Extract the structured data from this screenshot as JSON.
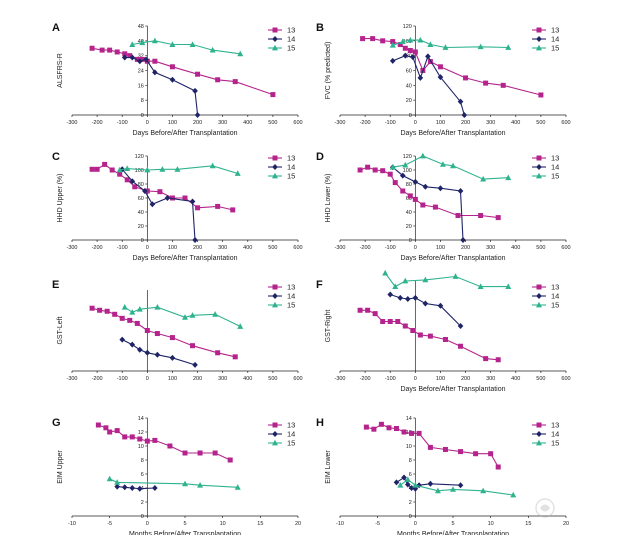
{
  "chart_data": [
    {
      "panel": "A",
      "type": "line",
      "xlabel": "Days Before/After Transplantation",
      "ylabel": "ALSFRS-R",
      "xlim": [
        -300,
        600
      ],
      "ylim": [
        0,
        48
      ],
      "xticks": [
        "-300",
        "-200",
        "-100",
        "0",
        "100",
        "200",
        "300",
        "400",
        "500",
        "600"
      ],
      "yticks": [
        "0",
        "8",
        "16",
        "24",
        "32",
        "40",
        "48"
      ],
      "series": [
        {
          "name": "13",
          "color": "#b5248c",
          "marker": "square",
          "x": [
            -220,
            -180,
            -150,
            -120,
            -90,
            -70,
            -40,
            -20,
            0,
            30,
            100,
            200,
            280,
            350,
            500
          ],
          "y": [
            36,
            35,
            35,
            34,
            33,
            32,
            30,
            30,
            29,
            29,
            26,
            22,
            19,
            18,
            11
          ]
        },
        {
          "name": "14",
          "color": "#1e2466",
          "marker": "diamond",
          "x": [
            -90,
            -60,
            -30,
            -5,
            30,
            100,
            190,
            200
          ],
          "y": [
            31,
            31,
            29,
            30,
            23,
            19,
            13,
            0
          ]
        },
        {
          "name": "15",
          "color": "#2fb38f",
          "marker": "triangle",
          "x": [
            -60,
            -20,
            30,
            100,
            180,
            260,
            370
          ],
          "y": [
            38,
            39,
            40,
            38,
            38,
            35,
            33
          ]
        }
      ],
      "legend": "top-right"
    },
    {
      "panel": "B",
      "type": "line",
      "xlabel": "Days Before/After Transplantation",
      "ylabel": "FVC (% predicted)",
      "xlim": [
        -300,
        600
      ],
      "ylim": [
        0,
        120
      ],
      "xticks": [
        "-300",
        "-200",
        "-100",
        "0",
        "100",
        "200",
        "300",
        "400",
        "500",
        "600"
      ],
      "yticks": [
        "0",
        "20",
        "40",
        "60",
        "80",
        "100",
        "120"
      ],
      "series": [
        {
          "name": "13",
          "color": "#b5248c",
          "marker": "square",
          "x": [
            -210,
            -170,
            -130,
            -90,
            -60,
            -40,
            -20,
            0,
            30,
            60,
            100,
            200,
            280,
            350,
            500
          ],
          "y": [
            103,
            103,
            100,
            99,
            95,
            90,
            87,
            85,
            60,
            72,
            65,
            50,
            43,
            40,
            27
          ]
        },
        {
          "name": "14",
          "color": "#1e2466",
          "marker": "diamond",
          "x": [
            -90,
            -40,
            -10,
            20,
            50,
            100,
            180,
            195
          ],
          "y": [
            73,
            80,
            78,
            50,
            79,
            51,
            18,
            0
          ]
        },
        {
          "name": "15",
          "color": "#2fb38f",
          "marker": "triangle",
          "x": [
            -90,
            -50,
            -20,
            20,
            60,
            120,
            260,
            370
          ],
          "y": [
            94,
            99,
            101,
            101,
            95,
            91,
            92,
            91
          ]
        }
      ],
      "legend": "top-right"
    },
    {
      "panel": "C",
      "type": "line",
      "xlabel": "Days Before/After Transplantation",
      "ylabel": "HHD Upper (%)",
      "xlim": [
        -300,
        600
      ],
      "ylim": [
        0,
        120
      ],
      "xticks": [
        "-300",
        "-200",
        "-100",
        "0",
        "100",
        "200",
        "300",
        "400",
        "500",
        "600"
      ],
      "yticks": [
        "0",
        "20",
        "40",
        "60",
        "80",
        "100",
        "120"
      ],
      "series": [
        {
          "name": "13",
          "color": "#b5248c",
          "marker": "square",
          "x": [
            -220,
            -200,
            -170,
            -140,
            -110,
            -80,
            -50,
            0,
            50,
            100,
            150,
            200,
            280,
            340
          ],
          "y": [
            101,
            101,
            108,
            100,
            94,
            86,
            76,
            70,
            69,
            60,
            60,
            46,
            48,
            43
          ]
        },
        {
          "name": "14",
          "color": "#1e2466",
          "marker": "diamond",
          "x": [
            -100,
            -60,
            -10,
            20,
            80,
            180,
            190
          ],
          "y": [
            101,
            84,
            70,
            51,
            60,
            55,
            0
          ]
        },
        {
          "name": "15",
          "color": "#2fb38f",
          "marker": "triangle",
          "x": [
            -110,
            -80,
            0,
            60,
            120,
            260,
            360
          ],
          "y": [
            100,
            102,
            100,
            101,
            101,
            106,
            95
          ]
        }
      ],
      "legend": "top-right"
    },
    {
      "panel": "D",
      "type": "line",
      "xlabel": "Days Before/After Transplantation",
      "ylabel": "HHD Lower (%)",
      "xlim": [
        -300,
        600
      ],
      "ylim": [
        0,
        120
      ],
      "xticks": [
        "-300",
        "-200",
        "-100",
        "0",
        "100",
        "200",
        "300",
        "400",
        "500",
        "600"
      ],
      "yticks": [
        "0",
        "20",
        "40",
        "60",
        "80",
        "100",
        "120"
      ],
      "series": [
        {
          "name": "13",
          "color": "#b5248c",
          "marker": "square",
          "x": [
            -220,
            -190,
            -160,
            -130,
            -100,
            -80,
            -50,
            -20,
            0,
            30,
            80,
            170,
            260,
            330
          ],
          "y": [
            100,
            104,
            100,
            99,
            94,
            82,
            70,
            63,
            58,
            50,
            47,
            35,
            35,
            32
          ]
        },
        {
          "name": "14",
          "color": "#1e2466",
          "marker": "diamond",
          "x": [
            -90,
            -50,
            0,
            40,
            100,
            180,
            190
          ],
          "y": [
            104,
            92,
            83,
            76,
            74,
            70,
            0
          ]
        },
        {
          "name": "15",
          "color": "#2fb38f",
          "marker": "triangle",
          "x": [
            -90,
            -40,
            30,
            110,
            150,
            270,
            370
          ],
          "y": [
            104,
            107,
            120,
            108,
            106,
            87,
            89
          ]
        }
      ],
      "legend": "top-right"
    },
    {
      "panel": "E",
      "type": "line",
      "xlabel": "",
      "ylabel": "GST-Left",
      "xlim": [
        -300,
        600
      ],
      "ylim": [
        0,
        80
      ],
      "xticks": [
        "-300",
        "-200",
        "-100",
        "0",
        "100",
        "200",
        "300",
        "400",
        "500",
        "600"
      ],
      "yticks": [],
      "series": [
        {
          "name": "13",
          "color": "#b5248c",
          "marker": "square",
          "x": [
            -220,
            -190,
            -160,
            -130,
            -100,
            -70,
            -40,
            0,
            40,
            100,
            180,
            280,
            350
          ],
          "y": [
            62,
            60,
            59,
            56,
            52,
            50,
            47,
            40,
            37,
            33,
            25,
            18,
            14
          ]
        },
        {
          "name": "14",
          "color": "#1e2466",
          "marker": "diamond",
          "x": [
            -100,
            -60,
            -30,
            0,
            40,
            100,
            190
          ],
          "y": [
            31,
            26,
            21,
            18,
            16,
            13,
            6
          ]
        },
        {
          "name": "15",
          "color": "#2fb38f",
          "marker": "triangle",
          "x": [
            -90,
            -60,
            -30,
            40,
            150,
            180,
            270,
            370
          ],
          "y": [
            63,
            58,
            61,
            63,
            53,
            55,
            56,
            44
          ]
        }
      ],
      "legend": "top-right"
    },
    {
      "panel": "F",
      "type": "line",
      "xlabel": "Days Before/After Transplantation",
      "ylabel": "GST-Right",
      "xlim": [
        -300,
        600
      ],
      "ylim": [
        0,
        80
      ],
      "xticks": [
        "-300",
        "-200",
        "-100",
        "0",
        "100",
        "200",
        "300",
        "400",
        "500",
        "600"
      ],
      "yticks": [],
      "series": [
        {
          "name": "13",
          "color": "#b5248c",
          "marker": "square",
          "x": [
            -220,
            -190,
            -160,
            -130,
            -100,
            -70,
            -40,
            -10,
            20,
            60,
            120,
            180,
            280,
            330
          ],
          "y": [
            54,
            54,
            51,
            44,
            44,
            44,
            40,
            36,
            32,
            31,
            28,
            22,
            11,
            10
          ]
        },
        {
          "name": "14",
          "color": "#1e2466",
          "marker": "diamond",
          "x": [
            -100,
            -60,
            -30,
            0,
            40,
            100,
            180
          ],
          "y": [
            68,
            65,
            64,
            65,
            60,
            58,
            40
          ]
        },
        {
          "name": "15",
          "color": "#2fb38f",
          "marker": "triangle",
          "x": [
            -120,
            -80,
            -40,
            40,
            160,
            260,
            370
          ],
          "y": [
            87,
            75,
            80,
            81,
            84,
            75,
            75
          ]
        }
      ],
      "legend": "top-right"
    },
    {
      "panel": "G",
      "type": "line",
      "xlabel": "Months Before/After Transplantation",
      "ylabel": "EIM Upper",
      "xlim": [
        -10,
        20
      ],
      "ylim": [
        0,
        14
      ],
      "xticks": [
        "-10",
        "-5",
        "0",
        "5",
        "10",
        "15",
        "20"
      ],
      "yticks": [
        "0",
        "2",
        "4",
        "6",
        "8",
        "10",
        "12",
        "14"
      ],
      "series": [
        {
          "name": "13",
          "color": "#b5248c",
          "marker": "square",
          "x": [
            -6.5,
            -5.5,
            -5,
            -4,
            -3,
            -2,
            -1,
            0,
            1,
            3,
            5,
            7,
            9,
            11
          ],
          "y": [
            13,
            12.6,
            12,
            12.2,
            11.3,
            11.3,
            11,
            10.7,
            10.8,
            10,
            9,
            9,
            9,
            8
          ]
        },
        {
          "name": "14",
          "color": "#1e2466",
          "marker": "diamond",
          "x": [
            -4,
            -3,
            -2,
            -1,
            1
          ],
          "y": [
            4.2,
            4.1,
            4.0,
            3.9,
            4.0
          ]
        },
        {
          "name": "15",
          "color": "#2fb38f",
          "marker": "triangle",
          "x": [
            -5,
            -4,
            5,
            7,
            12
          ],
          "y": [
            5.3,
            4.8,
            4.6,
            4.4,
            4.1
          ]
        }
      ],
      "legend": "top-right"
    },
    {
      "panel": "H",
      "type": "line",
      "xlabel": "Months Before/After Transplantation",
      "ylabel": "EIM Lower",
      "xlim": [
        -10,
        20
      ],
      "ylim": [
        0,
        14
      ],
      "xticks": [
        "-10",
        "-5",
        "0",
        "5",
        "10",
        "15",
        "20"
      ],
      "yticks": [
        "0",
        "2",
        "4",
        "6",
        "8",
        "10",
        "12",
        "14"
      ],
      "series": [
        {
          "name": "13",
          "color": "#b5248c",
          "marker": "square",
          "x": [
            -6.5,
            -5.5,
            -4.5,
            -3.5,
            -2.5,
            -1.5,
            -0.5,
            0.5,
            2,
            4,
            6,
            8,
            10,
            11
          ],
          "y": [
            12.7,
            12.4,
            13.1,
            12.6,
            12.5,
            12,
            11.8,
            11.8,
            9.8,
            9.5,
            9.2,
            8.9,
            8.9,
            7
          ]
        },
        {
          "name": "14",
          "color": "#1e2466",
          "marker": "diamond",
          "x": [
            -2.5,
            -1.5,
            -1,
            -0.5,
            0,
            0.5,
            2,
            6
          ],
          "y": [
            4.8,
            5.5,
            4.5,
            4,
            3.9,
            4.4,
            4.6,
            4.4
          ]
        },
        {
          "name": "15",
          "color": "#2fb38f",
          "marker": "triangle",
          "x": [
            -2,
            -1,
            0,
            3,
            5,
            9,
            13
          ],
          "y": [
            4.4,
            5.2,
            4.4,
            3.6,
            3.8,
            3.6,
            3.0
          ]
        }
      ],
      "legend": "top-right"
    }
  ],
  "watermark": "丁香园 DXY.CN"
}
